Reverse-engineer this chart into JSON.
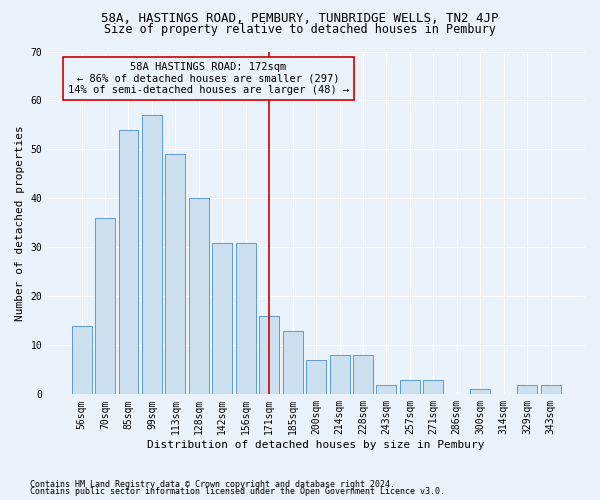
{
  "title1": "58A, HASTINGS ROAD, PEMBURY, TUNBRIDGE WELLS, TN2 4JP",
  "title2": "Size of property relative to detached houses in Pembury",
  "xlabel": "Distribution of detached houses by size in Pembury",
  "ylabel": "Number of detached properties",
  "bar_labels": [
    "56sqm",
    "70sqm",
    "85sqm",
    "99sqm",
    "113sqm",
    "128sqm",
    "142sqm",
    "156sqm",
    "171sqm",
    "185sqm",
    "200sqm",
    "214sqm",
    "228sqm",
    "243sqm",
    "257sqm",
    "271sqm",
    "286sqm",
    "300sqm",
    "314sqm",
    "329sqm",
    "343sqm"
  ],
  "bar_values": [
    14,
    36,
    54,
    57,
    49,
    40,
    31,
    31,
    16,
    13,
    7,
    8,
    8,
    2,
    3,
    3,
    0,
    1,
    0,
    2,
    2
  ],
  "bar_color": "#cce0f0",
  "bar_edge_color": "#5b9bd5",
  "vline_index": 8,
  "annotation_title": "58A HASTINGS ROAD: 172sqm",
  "annotation_line1": "← 86% of detached houses are smaller (297)",
  "annotation_line2": "14% of semi-detached houses are larger (48) →",
  "vline_color": "#cc0000",
  "box_edge_color": "#cc0000",
  "ylim": [
    0,
    70
  ],
  "yticks": [
    0,
    10,
    20,
    30,
    40,
    50,
    60,
    70
  ],
  "footnote1": "Contains HM Land Registry data © Crown copyright and database right 2024.",
  "footnote2": "Contains public sector information licensed under the Open Government Licence v3.0.",
  "bg_color": "#eaf2fb",
  "grid_color": "#ffffff",
  "title1_fontsize": 9,
  "title2_fontsize": 8.5,
  "axis_label_fontsize": 8,
  "tick_fontsize": 7,
  "annotation_fontsize": 7.5,
  "footnote_fontsize": 6
}
